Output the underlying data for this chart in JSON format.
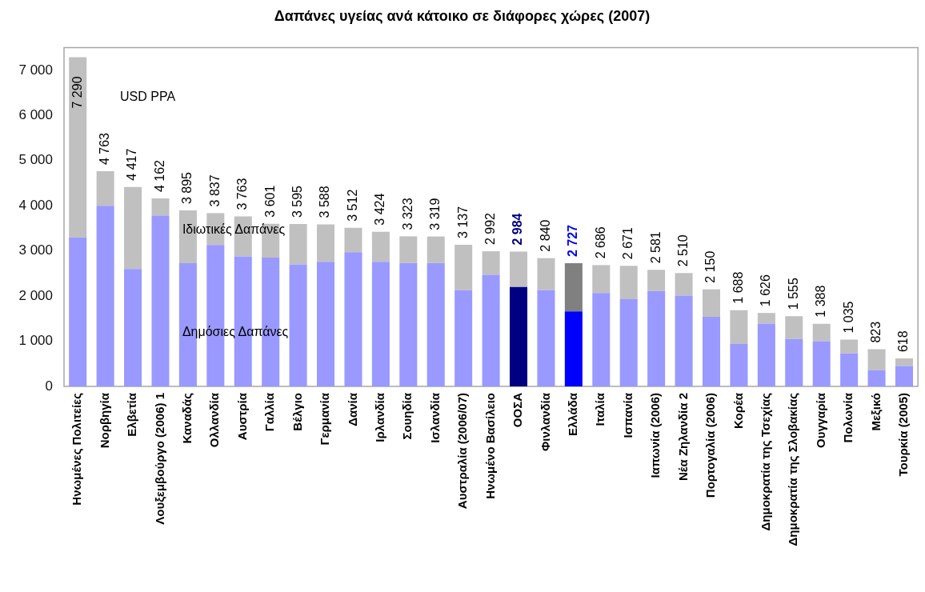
{
  "chart_data": {
    "type": "bar",
    "title": "Δαπάνες υγείας ανά κάτοικο σε διάφορες χώρες (2007)",
    "categories": [
      "Ηνωμένες Πολιτείες",
      "Νορβηγία",
      "Ελβετία",
      "Λουξεμβούργο (2006) 1",
      "Καναδάς",
      "Ολλανδία",
      "Αυστρία",
      "Γαλλία",
      "Βέλγιο",
      "Γερμανία",
      "Δανία",
      "Ιρλανδία",
      "Σουηδία",
      "Ισλανδία",
      "Αυστραλία (2006/07)",
      "Ηνωμένο Βασίλειο",
      "ΟΟΣΑ",
      "Φινλανδία",
      "Ελλάδα",
      "Ιταλία",
      "Ισπανία",
      "Ιαπωνία (2006)",
      "Νέα Ζηλανδία 2",
      "Πορτογαλία (2006)",
      "Κορέα",
      "Δημοκρατία της Τσεχίας",
      "Δημοκρατία της Σλοβακίας",
      "Ουγγαρία",
      "Πολωνία",
      "Μεξικό",
      "Τουρκία (2005)"
    ],
    "stacked": true,
    "series": [
      {
        "name": "Δημόσιες Δαπάνες",
        "color": "#9999ff",
        "colors": [
          "#9999ff",
          "#9999ff",
          "#9999ff",
          "#9999ff",
          "#9999ff",
          "#9999ff",
          "#9999ff",
          "#9999ff",
          "#9999ff",
          "#9999ff",
          "#9999ff",
          "#9999ff",
          "#9999ff",
          "#9999ff",
          "#9999ff",
          "#9999ff",
          "#000080",
          "#9999ff",
          "#0000ff",
          "#9999ff",
          "#9999ff",
          "#9999ff",
          "#9999ff",
          "#9999ff",
          "#9999ff",
          "#9999ff",
          "#9999ff",
          "#9999ff",
          "#9999ff",
          "#9999ff",
          "#9999ff"
        ],
        "values": [
          3300,
          4000,
          2600,
          3780,
          2730,
          3130,
          2880,
          2850,
          2700,
          2760,
          2970,
          2760,
          2730,
          2730,
          2130,
          2470,
          2200,
          2130,
          1660,
          2070,
          1930,
          2110,
          2010,
          1540,
          940,
          1390,
          1050,
          1000,
          730,
          360,
          450
        ]
      },
      {
        "name": "Ιδιωτικές Δαπάνες",
        "color": "#c0c0c0",
        "colors": [
          "#c0c0c0",
          "#c0c0c0",
          "#c0c0c0",
          "#c0c0c0",
          "#c0c0c0",
          "#c0c0c0",
          "#c0c0c0",
          "#c0c0c0",
          "#c0c0c0",
          "#c0c0c0",
          "#c0c0c0",
          "#c0c0c0",
          "#c0c0c0",
          "#c0c0c0",
          "#c0c0c0",
          "#c0c0c0",
          "#c0c0c0",
          "#c0c0c0",
          "#808080",
          "#c0c0c0",
          "#c0c0c0",
          "#c0c0c0",
          "#c0c0c0",
          "#c0c0c0",
          "#c0c0c0",
          "#c0c0c0",
          "#c0c0c0",
          "#c0c0c0",
          "#c0c0c0",
          "#c0c0c0",
          "#c0c0c0"
        ],
        "values": [
          3990,
          763,
          1817,
          382,
          1165,
          707,
          883,
          751,
          895,
          828,
          542,
          664,
          593,
          589,
          1007,
          522,
          784,
          710,
          1067,
          616,
          741,
          471,
          500,
          610,
          748,
          236,
          505,
          388,
          305,
          463,
          168
        ]
      }
    ],
    "totals": [
      "7 290",
      "4 763",
      "4 417",
      "4 162",
      "3 895",
      "3 837",
      "3 763",
      "3 601",
      "3 595",
      "3 588",
      "3 512",
      "3 424",
      "3 323",
      "3 319",
      "3 137",
      "2 992",
      "2 984",
      "2 840",
      "2 727",
      "2 686",
      "2 671",
      "2 581",
      "2 510",
      "2 150",
      "1 688",
      "1 626",
      "1 555",
      "1 388",
      "1 035",
      "823",
      "618"
    ],
    "ylim": [
      0,
      7500
    ],
    "yticks": [
      {
        "value": 0,
        "label": "0"
      },
      {
        "value": 1000,
        "label": "1 000"
      },
      {
        "value": 2000,
        "label": "2 000"
      },
      {
        "value": 3000,
        "label": "3 000"
      },
      {
        "value": 4000,
        "label": "4 000"
      },
      {
        "value": 5000,
        "label": "5 000"
      },
      {
        "value": 6000,
        "label": "6 000"
      },
      {
        "value": 7000,
        "label": "7 000"
      }
    ],
    "grid": false,
    "legend": false,
    "annotations": [
      "USD PPA"
    ]
  }
}
